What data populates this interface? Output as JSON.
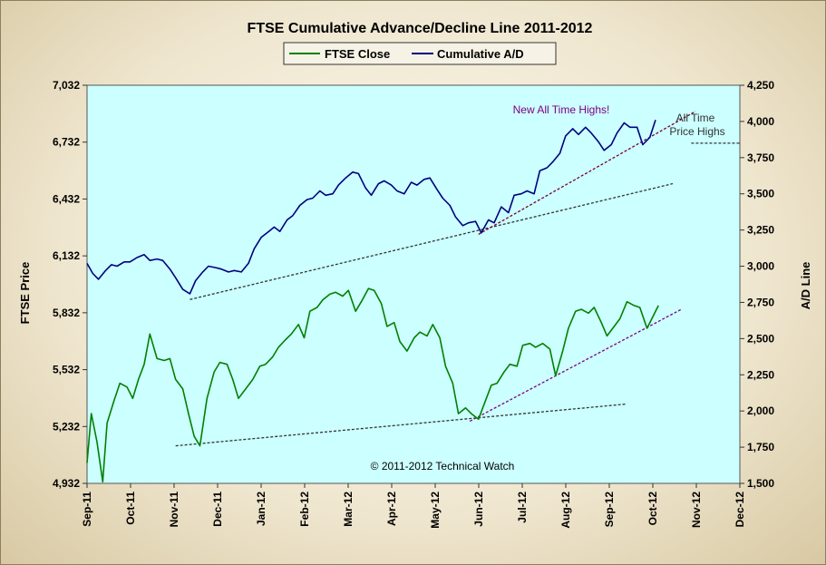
{
  "chart_data": {
    "type": "line",
    "title": "FTSE Cumulative  Advance/Decline  Line  2011-2012",
    "ylabel": "FTSE Price",
    "y2label": "A/D Line",
    "legend_position": "top-center",
    "plot_background": "#ccffff",
    "grid": false,
    "y_ticks": [
      "7,032",
      "6,732",
      "6,432",
      "6,132",
      "5,832",
      "5,532",
      "5,232",
      "4,932"
    ],
    "y2_ticks": [
      "4,250",
      "4,000",
      "3,750",
      "3,500",
      "3,250",
      "3,000",
      "2,750",
      "2,500",
      "2,250",
      "2,000",
      "1,750",
      "1,500"
    ],
    "x_ticks": [
      "Sep-11",
      "Oct-11",
      "Nov-11",
      "Dec-11",
      "Jan-12",
      "Feb-12",
      "Mar-12",
      "Apr-12",
      "May-12",
      "Jun-12",
      "Jul-12",
      "Aug-12",
      "Sep-12",
      "Oct-12",
      "Nov-12",
      "Dec-12"
    ],
    "ylim": [
      4932,
      7032
    ],
    "y2lim": [
      1500,
      4250
    ],
    "xlim": [
      "2011-09-01",
      "2012-12-01"
    ],
    "series": [
      {
        "name": "FTSE Close",
        "axis": "left",
        "color": "#008000",
        "points": [
          [
            "2011-09-01",
            5040
          ],
          [
            "2011-09-04",
            5300
          ],
          [
            "2011-09-08",
            5150
          ],
          [
            "2011-09-12",
            4940
          ],
          [
            "2011-09-15",
            5250
          ],
          [
            "2011-09-20",
            5370
          ],
          [
            "2011-09-24",
            5460
          ],
          [
            "2011-09-29",
            5440
          ],
          [
            "2011-10-03",
            5380
          ],
          [
            "2011-10-07",
            5480
          ],
          [
            "2011-10-11",
            5560
          ],
          [
            "2011-10-15",
            5720
          ],
          [
            "2011-10-20",
            5590
          ],
          [
            "2011-10-25",
            5580
          ],
          [
            "2011-10-29",
            5590
          ],
          [
            "2011-11-02",
            5480
          ],
          [
            "2011-11-07",
            5430
          ],
          [
            "2011-11-11",
            5300
          ],
          [
            "2011-11-15",
            5180
          ],
          [
            "2011-11-19",
            5130
          ],
          [
            "2011-11-24",
            5380
          ],
          [
            "2011-11-29",
            5520
          ],
          [
            "2011-12-03",
            5570
          ],
          [
            "2011-12-08",
            5560
          ],
          [
            "2011-12-12",
            5480
          ],
          [
            "2011-12-16",
            5380
          ],
          [
            "2011-12-21",
            5430
          ],
          [
            "2011-12-26",
            5480
          ],
          [
            "2011-12-31",
            5550
          ],
          [
            "2012-01-04",
            5560
          ],
          [
            "2012-01-09",
            5600
          ],
          [
            "2012-01-13",
            5650
          ],
          [
            "2012-01-18",
            5690
          ],
          [
            "2012-01-22",
            5720
          ],
          [
            "2012-01-27",
            5770
          ],
          [
            "2012-01-31",
            5700
          ],
          [
            "2012-02-04",
            5840
          ],
          [
            "2012-02-09",
            5860
          ],
          [
            "2012-02-13",
            5900
          ],
          [
            "2012-02-18",
            5930
          ],
          [
            "2012-02-22",
            5940
          ],
          [
            "2012-02-27",
            5920
          ],
          [
            "2012-03-02",
            5950
          ],
          [
            "2012-03-07",
            5840
          ],
          [
            "2012-03-11",
            5890
          ],
          [
            "2012-03-16",
            5960
          ],
          [
            "2012-03-20",
            5950
          ],
          [
            "2012-03-25",
            5880
          ],
          [
            "2012-03-29",
            5760
          ],
          [
            "2012-04-03",
            5780
          ],
          [
            "2012-04-07",
            5680
          ],
          [
            "2012-04-12",
            5630
          ],
          [
            "2012-04-17",
            5700
          ],
          [
            "2012-04-21",
            5730
          ],
          [
            "2012-04-26",
            5710
          ],
          [
            "2012-04-30",
            5770
          ],
          [
            "2012-05-05",
            5700
          ],
          [
            "2012-05-09",
            5550
          ],
          [
            "2012-05-14",
            5460
          ],
          [
            "2012-05-18",
            5300
          ],
          [
            "2012-05-23",
            5330
          ],
          [
            "2012-05-27",
            5300
          ],
          [
            "2012-06-01",
            5270
          ],
          [
            "2012-06-05",
            5350
          ],
          [
            "2012-06-10",
            5450
          ],
          [
            "2012-06-14",
            5460
          ],
          [
            "2012-06-19",
            5520
          ],
          [
            "2012-06-23",
            5560
          ],
          [
            "2012-06-28",
            5550
          ],
          [
            "2012-07-02",
            5660
          ],
          [
            "2012-07-07",
            5670
          ],
          [
            "2012-07-11",
            5650
          ],
          [
            "2012-07-16",
            5670
          ],
          [
            "2012-07-21",
            5640
          ],
          [
            "2012-07-25",
            5500
          ],
          [
            "2012-07-30",
            5630
          ],
          [
            "2012-08-03",
            5750
          ],
          [
            "2012-08-08",
            5840
          ],
          [
            "2012-08-12",
            5850
          ],
          [
            "2012-08-17",
            5830
          ],
          [
            "2012-08-21",
            5860
          ],
          [
            "2012-08-26",
            5780
          ],
          [
            "2012-08-30",
            5710
          ],
          [
            "2012-09-04",
            5760
          ],
          [
            "2012-09-08",
            5800
          ],
          [
            "2012-09-13",
            5890
          ],
          [
            "2012-09-18",
            5870
          ],
          [
            "2012-09-22",
            5860
          ],
          [
            "2012-09-27",
            5750
          ],
          [
            "2012-10-01",
            5810
          ],
          [
            "2012-10-05",
            5870
          ]
        ]
      },
      {
        "name": "Cumulative A/D",
        "axis": "right",
        "color": "#000080",
        "points": [
          [
            "2011-09-01",
            3020
          ],
          [
            "2011-09-05",
            2950
          ],
          [
            "2011-09-09",
            2910
          ],
          [
            "2011-09-14",
            2970
          ],
          [
            "2011-09-18",
            3010
          ],
          [
            "2011-09-22",
            3000
          ],
          [
            "2011-09-27",
            3030
          ],
          [
            "2011-10-01",
            3030
          ],
          [
            "2011-10-06",
            3060
          ],
          [
            "2011-10-11",
            3080
          ],
          [
            "2011-10-15",
            3040
          ],
          [
            "2011-10-20",
            3050
          ],
          [
            "2011-10-24",
            3040
          ],
          [
            "2011-10-29",
            2980
          ],
          [
            "2011-11-02",
            2920
          ],
          [
            "2011-11-07",
            2840
          ],
          [
            "2011-11-12",
            2810
          ],
          [
            "2011-11-16",
            2900
          ],
          [
            "2011-11-21",
            2960
          ],
          [
            "2011-11-25",
            3000
          ],
          [
            "2011-11-30",
            2990
          ],
          [
            "2011-12-04",
            2980
          ],
          [
            "2011-12-09",
            2960
          ],
          [
            "2011-12-13",
            2970
          ],
          [
            "2011-12-18",
            2960
          ],
          [
            "2011-12-23",
            3020
          ],
          [
            "2011-12-27",
            3120
          ],
          [
            "2012-01-01",
            3200
          ],
          [
            "2012-01-05",
            3230
          ],
          [
            "2012-01-10",
            3270
          ],
          [
            "2012-01-14",
            3240
          ],
          [
            "2012-01-19",
            3320
          ],
          [
            "2012-01-23",
            3350
          ],
          [
            "2012-01-28",
            3420
          ],
          [
            "2012-02-02",
            3460
          ],
          [
            "2012-02-06",
            3470
          ],
          [
            "2012-02-11",
            3520
          ],
          [
            "2012-02-15",
            3490
          ],
          [
            "2012-02-20",
            3500
          ],
          [
            "2012-02-24",
            3560
          ],
          [
            "2012-02-29",
            3610
          ],
          [
            "2012-03-05",
            3650
          ],
          [
            "2012-03-09",
            3640
          ],
          [
            "2012-03-14",
            3540
          ],
          [
            "2012-03-18",
            3490
          ],
          [
            "2012-03-23",
            3570
          ],
          [
            "2012-03-27",
            3590
          ],
          [
            "2012-04-01",
            3560
          ],
          [
            "2012-04-05",
            3520
          ],
          [
            "2012-04-10",
            3500
          ],
          [
            "2012-04-15",
            3580
          ],
          [
            "2012-04-19",
            3560
          ],
          [
            "2012-04-24",
            3600
          ],
          [
            "2012-04-28",
            3610
          ],
          [
            "2012-05-03",
            3530
          ],
          [
            "2012-05-07",
            3470
          ],
          [
            "2012-05-12",
            3420
          ],
          [
            "2012-05-16",
            3340
          ],
          [
            "2012-05-21",
            3280
          ],
          [
            "2012-05-25",
            3300
          ],
          [
            "2012-05-30",
            3310
          ],
          [
            "2012-06-03",
            3230
          ],
          [
            "2012-06-08",
            3320
          ],
          [
            "2012-06-12",
            3300
          ],
          [
            "2012-06-17",
            3410
          ],
          [
            "2012-06-22",
            3370
          ],
          [
            "2012-06-26",
            3490
          ],
          [
            "2012-07-01",
            3500
          ],
          [
            "2012-07-05",
            3520
          ],
          [
            "2012-07-10",
            3500
          ],
          [
            "2012-07-14",
            3660
          ],
          [
            "2012-07-19",
            3680
          ],
          [
            "2012-07-23",
            3720
          ],
          [
            "2012-07-28",
            3780
          ],
          [
            "2012-08-01",
            3900
          ],
          [
            "2012-08-06",
            3950
          ],
          [
            "2012-08-10",
            3910
          ],
          [
            "2012-08-15",
            3960
          ],
          [
            "2012-08-19",
            3920
          ],
          [
            "2012-08-24",
            3860
          ],
          [
            "2012-08-28",
            3800
          ],
          [
            "2012-09-02",
            3840
          ],
          [
            "2012-09-06",
            3920
          ],
          [
            "2012-09-11",
            3990
          ],
          [
            "2012-09-15",
            3960
          ],
          [
            "2012-09-20",
            3960
          ],
          [
            "2012-09-24",
            3840
          ],
          [
            "2012-09-29",
            3890
          ],
          [
            "2012-10-03",
            4010
          ]
        ]
      }
    ],
    "trendlines": [
      {
        "axis": "right",
        "color": "#333333",
        "from": [
          "2011-11-12",
          2770
        ],
        "to": [
          "2012-10-15",
          3570
        ]
      },
      {
        "axis": "right",
        "color": "#7a0030",
        "from": [
          "2012-06-01",
          3220
        ],
        "to": [
          "2012-10-31",
          4070
        ]
      },
      {
        "axis": "left",
        "color": "#333333",
        "from": [
          "2011-11-02",
          5130
        ],
        "to": [
          "2012-09-12",
          5350
        ]
      },
      {
        "axis": "left",
        "color": "#800080",
        "from": [
          "2012-05-26",
          5260
        ],
        "to": [
          "2012-10-21",
          5850
        ]
      }
    ],
    "reference_lines": [
      {
        "axis": "right",
        "value": 3850,
        "from": "2012-10-28",
        "to": "2012-12-01",
        "color": "#333333"
      }
    ],
    "annotations": {
      "new_highs": "New All Time Highs!",
      "all_time_line1": "All Time",
      "all_time_line2": "Price Highs",
      "copyright": "© 2011-2012  Technical  Watch"
    }
  }
}
